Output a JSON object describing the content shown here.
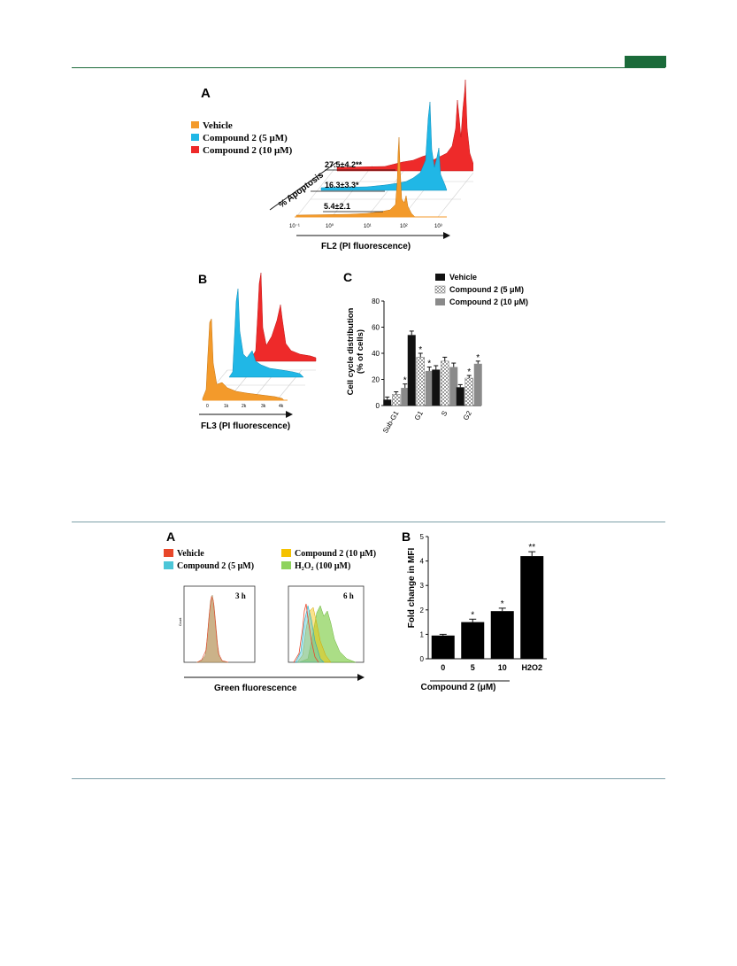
{
  "colors": {
    "accent": "#1b6b3a",
    "rule_blue": "#7d9fa8",
    "vehicle_orange": "#f39a2b",
    "compound5_cyan": "#20b7e6",
    "compound10_red": "#ee2a2a",
    "h2o2_green": "#8fd35e",
    "fig3_vehicle": "#e8472a",
    "fig3_c10": "#f5c200"
  },
  "figure1": {
    "panelA": {
      "label": "A",
      "legend": [
        "Vehicle",
        "Compound 2 (5 μM)",
        "Compound 2 (10 μM)"
      ],
      "apoptosis_label": "% Apoptosis",
      "apoptosis_values": [
        "27.5±4.2**",
        "16.3±3.3*",
        "5.4±2.1"
      ],
      "axis_ticks": [
        "10⁻¹",
        "10⁰",
        "10¹",
        "10²",
        "10³"
      ],
      "xlabel": "FL2 (PI fluorescence)"
    },
    "panelB": {
      "label": "B",
      "axis_ticks": [
        "0",
        "1k",
        "2k",
        "3k",
        "4k"
      ],
      "xlabel": "FL3 (PI fluorescence)"
    },
    "panelC": {
      "label": "C",
      "ylabel_line1": "Cell cycle distribution",
      "ylabel_line2": "(% of cells)"
    }
  },
  "figure2": {
    "panelA": {
      "label": "A",
      "legend": [
        "Vehicle",
        "Compound 2 (5 μM)",
        "Compound 2  (10 μM)",
        "H₂O₂ (100 μM)"
      ],
      "left_title": "3 h",
      "right_title": "6 h",
      "y_caption": "Count",
      "xlabel": "Green fluorescence"
    },
    "panelB": {
      "label": "B",
      "ylabel": "Fold change in MFI",
      "xgroup_label": "Compound 2 (μM)"
    }
  },
  "chart_data": [
    {
      "type": "bar",
      "panel": "1C",
      "categories": [
        "Sub-G1",
        "G1",
        "S",
        "G2"
      ],
      "series": [
        {
          "name": "Vehicle",
          "values": [
            4.5,
            54,
            27.5,
            14
          ],
          "errors": [
            2,
            3,
            3,
            2
          ]
        },
        {
          "name": "Compound 2 (5 μM)",
          "values": [
            8.5,
            37,
            34,
            21
          ],
          "errors": [
            2,
            3,
            3,
            2
          ]
        },
        {
          "name": "Compound 2 (10 μM)",
          "values": [
            13.5,
            26.5,
            29.5,
            32
          ],
          "errors": [
            3,
            3,
            3,
            2
          ]
        }
      ],
      "significance": [
        [
          "",
          "",
          "*"
        ],
        [
          "",
          "*",
          "*"
        ],
        [
          "",
          "",
          ""
        ],
        [
          "",
          "*",
          "*"
        ]
      ],
      "yticks": [
        "0",
        "20",
        "40",
        "60",
        "80"
      ],
      "ylim": [
        0,
        80
      ],
      "ylabel": "Cell cycle distribution (% of cells)",
      "legend_position": "top-right"
    },
    {
      "type": "bar",
      "panel": "2B",
      "categories": [
        "0",
        "5",
        "10",
        "H2O2"
      ],
      "values": [
        0.95,
        1.5,
        1.95,
        4.2
      ],
      "errors": [
        0.05,
        0.12,
        0.12,
        0.18
      ],
      "significance": [
        "",
        "*",
        "*",
        "**"
      ],
      "yticks": [
        "0",
        "1",
        "2",
        "3",
        "4",
        "5"
      ],
      "ylim": [
        0,
        5
      ],
      "ylabel": "Fold change in MFI",
      "xlabel": "Compound 2 (μM)"
    }
  ]
}
